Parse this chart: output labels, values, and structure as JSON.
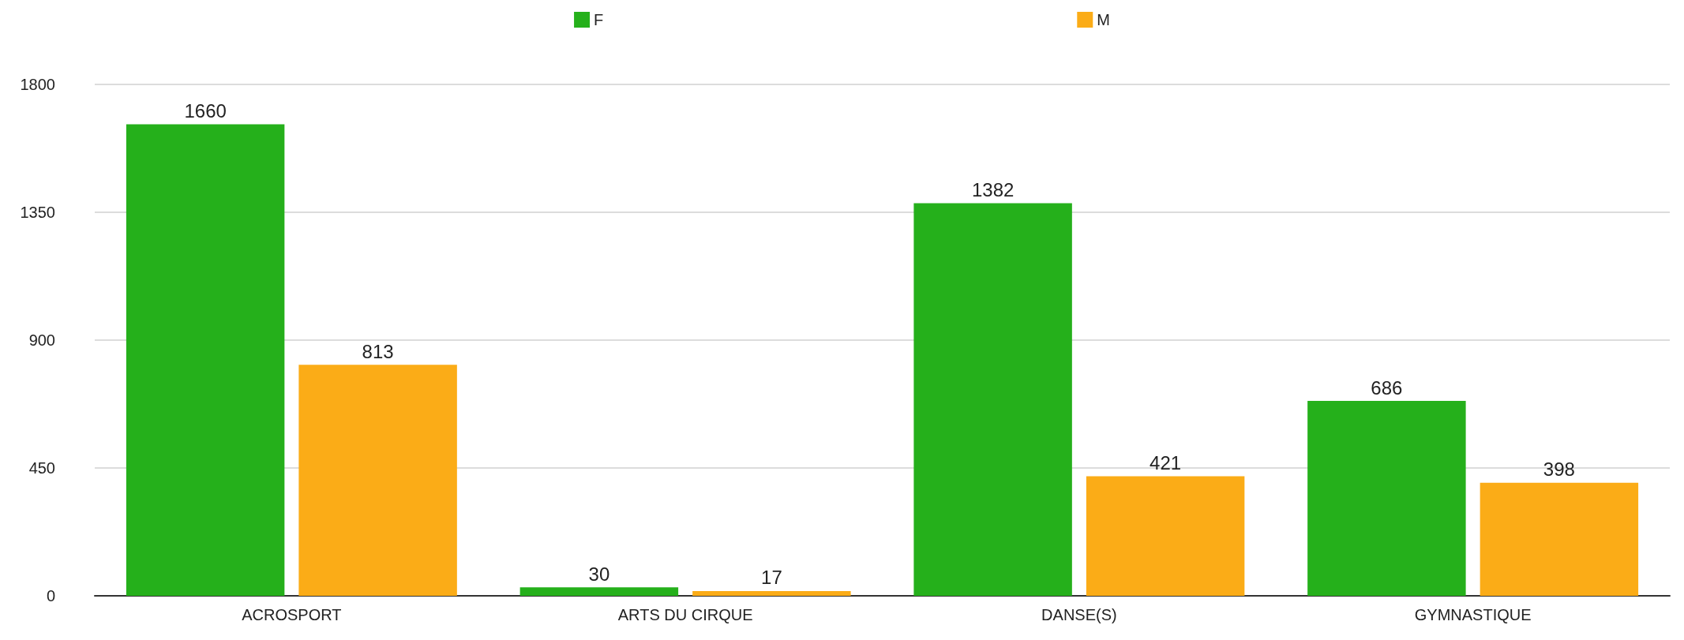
{
  "chart_data": {
    "type": "bar",
    "categories": [
      "ACROSPORT",
      "ARTS DU CIRQUE",
      "DANSE(S)",
      "GYMNASTIQUE"
    ],
    "series": [
      {
        "name": "F",
        "color": "#25b01b",
        "values": [
          1660,
          30,
          1382,
          686
        ]
      },
      {
        "name": "M",
        "color": "#fbac17",
        "values": [
          813,
          17,
          421,
          398
        ]
      }
    ],
    "ylim": [
      0,
      1800
    ],
    "yticks": [
      0,
      450,
      900,
      1350,
      1800
    ],
    "grid": "y",
    "legend": "top",
    "data_labels": true
  }
}
